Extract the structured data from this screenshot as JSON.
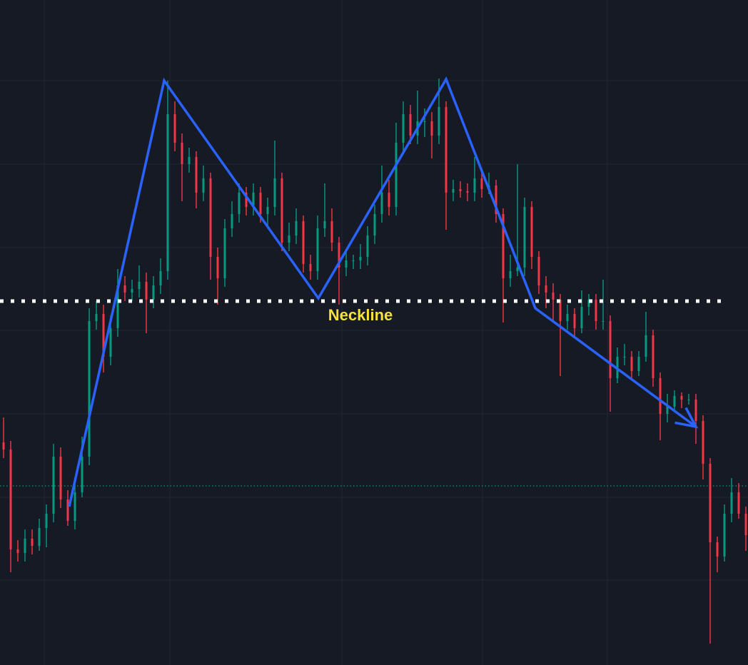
{
  "chart_data": {
    "type": "candlestick",
    "xlim": [
      -0.5,
      104.3
    ],
    "ylim": [
      0,
      932
    ],
    "xticks": [
      5.7,
      23.3,
      47.4,
      67.1,
      84.6
    ],
    "yticks": [
      119,
      235,
      352,
      469,
      585,
      702,
      819
    ],
    "grid": true,
    "grid_color": "#242733",
    "up_color": "#089981",
    "down_color": "#f23645",
    "open": [
      312,
      302,
      162,
      157,
      177,
      167,
      192,
      212,
      292,
      232,
      202,
      242,
      292,
      482,
      492,
      432,
      472,
      532,
      522,
      527,
      537,
      512,
      532,
      552,
      772,
      732,
      702,
      712,
      662,
      682,
      572,
      542,
      612,
      632,
      662,
      642,
      662,
      632,
      642,
      682,
      592,
      602,
      622,
      562,
      552,
      612,
      622,
      592,
      557,
      567,
      567,
      572,
      602,
      632,
      662,
      642,
      732,
      772,
      742,
      762,
      762,
      742,
      782,
      662,
      667,
      664,
      662,
      682,
      667,
      672,
      632,
      542,
      552,
      557,
      642,
      572,
      532,
      522,
      512,
      482,
      492,
      472,
      502,
      512,
      482,
      482,
      402,
      432,
      432,
      412,
      432,
      462,
      402,
      352,
      362,
      377,
      372,
      372,
      342,
      282,
      172,
      152,
      212,
      242,
      212
    ],
    "high": [
      347,
      314,
      175,
      190,
      190,
      205,
      225,
      310,
      305,
      245,
      255,
      320,
      500,
      510,
      505,
      490,
      555,
      545,
      540,
      560,
      550,
      545,
      570,
      819,
      790,
      745,
      725,
      720,
      700,
      690,
      585,
      625,
      650,
      675,
      670,
      675,
      670,
      655,
      735,
      690,
      620,
      640,
      630,
      575,
      630,
      675,
      640,
      600,
      580,
      575,
      590,
      615,
      645,
      700,
      680,
      760,
      790,
      785,
      805,
      780,
      775,
      822,
      790,
      680,
      678,
      675,
      712,
      695,
      690,
      680,
      640,
      575,
      702,
      655,
      650,
      580,
      545,
      535,
      520,
      505,
      500,
      525,
      520,
      520,
      540,
      490,
      445,
      450,
      440,
      440,
      495,
      470,
      410,
      380,
      385,
      382,
      380,
      380,
      350,
      290,
      180,
      225,
      262,
      255,
      222
    ],
    "low": [
      290,
      130,
      145,
      145,
      155,
      160,
      165,
      200,
      220,
      195,
      190,
      235,
      280,
      470,
      410,
      420,
      460,
      510,
      510,
      515,
      465,
      500,
      520,
      540,
      720,
      650,
      690,
      640,
      650,
      540,
      505,
      530,
      600,
      620,
      630,
      630,
      620,
      615,
      630,
      580,
      580,
      590,
      550,
      540,
      540,
      600,
      580,
      505,
      545,
      555,
      555,
      560,
      590,
      620,
      630,
      630,
      720,
      730,
      730,
      740,
      710,
      730,
      610,
      650,
      655,
      650,
      650,
      655,
      660,
      620,
      480,
      530,
      545,
      545,
      555,
      520,
      500,
      480,
      405,
      470,
      460,
      465,
      490,
      470,
      470,
      355,
      395,
      420,
      400,
      405,
      425,
      390,
      315,
      340,
      355,
      360,
      365,
      310,
      260,
      30,
      130,
      145,
      200,
      205,
      160
    ],
    "close": [
      302,
      162,
      157,
      177,
      167,
      192,
      212,
      292,
      232,
      202,
      242,
      292,
      482,
      492,
      432,
      472,
      532,
      522,
      527,
      537,
      512,
      532,
      552,
      772,
      732,
      702,
      712,
      662,
      682,
      572,
      542,
      612,
      632,
      662,
      642,
      662,
      632,
      642,
      682,
      592,
      602,
      622,
      562,
      552,
      612,
      622,
      592,
      557,
      567,
      567,
      572,
      602,
      632,
      662,
      642,
      732,
      772,
      742,
      762,
      762,
      742,
      782,
      662,
      667,
      664,
      662,
      682,
      667,
      672,
      632,
      542,
      552,
      557,
      642,
      572,
      532,
      522,
      512,
      482,
      492,
      472,
      502,
      512,
      482,
      482,
      402,
      432,
      432,
      412,
      432,
      462,
      402,
      352,
      362,
      377,
      372,
      372,
      342,
      282,
      172,
      152,
      212,
      242,
      212,
      182
    ],
    "price_line": {
      "value": 251,
      "color": "#089981"
    },
    "neckline": {
      "label": "Neckline",
      "value": 510,
      "x": [
        -0.5,
        100.5
      ],
      "color": "#ffffff",
      "label_color": "#f5e13a"
    },
    "pattern": {
      "color": "#2962ff",
      "x": [
        9.2,
        22.5,
        44.1,
        62,
        74.5,
        97
      ],
      "y": [
        222,
        819,
        514,
        821,
        500,
        334
      ]
    }
  }
}
